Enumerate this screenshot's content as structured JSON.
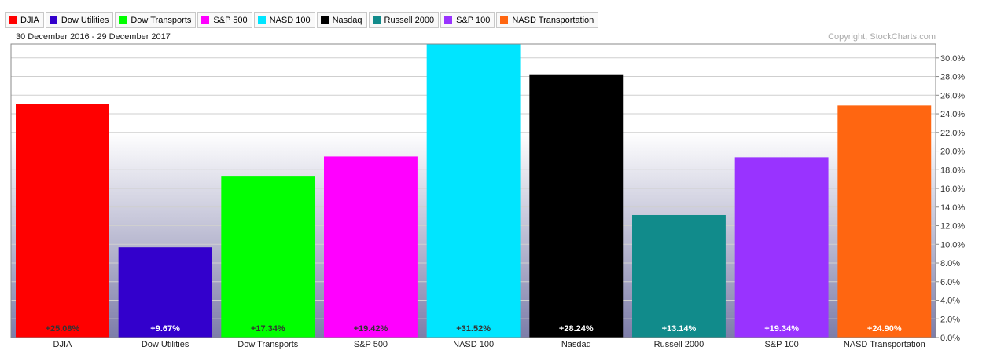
{
  "date_range": "30 December 2016 - 29 December 2017",
  "copyright": "Copyright, StockCharts.com",
  "colors": {
    "grid": "#cfcfcf",
    "background_gradient": [
      "#ffffff",
      "#7d7da9"
    ],
    "frame": "#888888"
  },
  "chart_data": {
    "type": "bar",
    "categories": [
      "DJIA",
      "Dow Utilities",
      "Dow Transports",
      "S&P 500",
      "NASD 100",
      "Nasdaq",
      "Russell 2000",
      "S&P 100",
      "NASD Transportation"
    ],
    "values": [
      25.08,
      9.67,
      17.34,
      19.42,
      31.52,
      28.24,
      13.14,
      19.34,
      24.9
    ],
    "value_labels": [
      "+25.08%",
      "+9.67%",
      "+17.34%",
      "+19.42%",
      "+31.52%",
      "+28.24%",
      "+13.14%",
      "+19.34%",
      "+24.90%"
    ],
    "colors": [
      "#ff0000",
      "#3300cc",
      "#00ff00",
      "#ff00ff",
      "#00e5ff",
      "#000000",
      "#118b8b",
      "#9933ff",
      "#ff6611"
    ],
    "label_colors": [
      "#333333",
      "#ffffff",
      "#333333",
      "#333333",
      "#333333",
      "#ffffff",
      "#ffffff",
      "#ffffff",
      "#ffffff"
    ],
    "ylim": [
      0,
      31.5
    ],
    "yticks": [
      0,
      2,
      4,
      6,
      8,
      10,
      12,
      14,
      16,
      18,
      20,
      22,
      24,
      26,
      28,
      30
    ],
    "ytick_labels": [
      "0.0%",
      "2.0%",
      "4.0%",
      "6.0%",
      "8.0%",
      "10.0%",
      "12.0%",
      "14.0%",
      "16.0%",
      "18.0%",
      "20.0%",
      "22.0%",
      "24.0%",
      "26.0%",
      "28.0%",
      "30.0%"
    ],
    "y_axis_side": "right",
    "grid": true,
    "legend_position": "top-left",
    "legend": [
      "DJIA",
      "Dow Utilities",
      "Dow Transports",
      "S&P 500",
      "NASD 100",
      "Nasdaq",
      "Russell 2000",
      "S&P 100",
      "NASD Transportation"
    ]
  }
}
